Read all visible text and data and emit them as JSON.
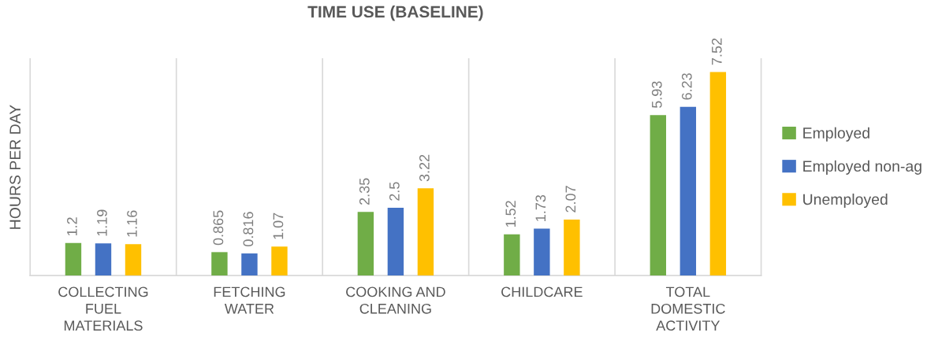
{
  "chart_data": {
    "type": "bar",
    "title": "TIME USE (BASELINE)",
    "ylabel": "HOURS PER DAY",
    "categories": [
      "COLLECTING FUEL MATERIALS",
      "FETCHING WATER",
      "COOKING AND CLEANING",
      "CHILDCARE",
      "TOTAL DOMESTIC ACTIVITY"
    ],
    "series": [
      {
        "name": "Employed",
        "color": "#70ad47",
        "values": [
          1.2,
          0.865,
          2.35,
          1.52,
          5.93
        ]
      },
      {
        "name": "Employed non-ag",
        "color": "#4472c4",
        "values": [
          1.19,
          0.816,
          2.5,
          1.73,
          6.23
        ]
      },
      {
        "name": "Unemployed",
        "color": "#ffc000",
        "values": [
          1.16,
          1.07,
          3.22,
          2.07,
          7.52
        ]
      }
    ],
    "ylim": [
      0,
      8
    ],
    "tick_labels": "x",
    "grid": "x",
    "legend": "right",
    "data_labels": true
  }
}
